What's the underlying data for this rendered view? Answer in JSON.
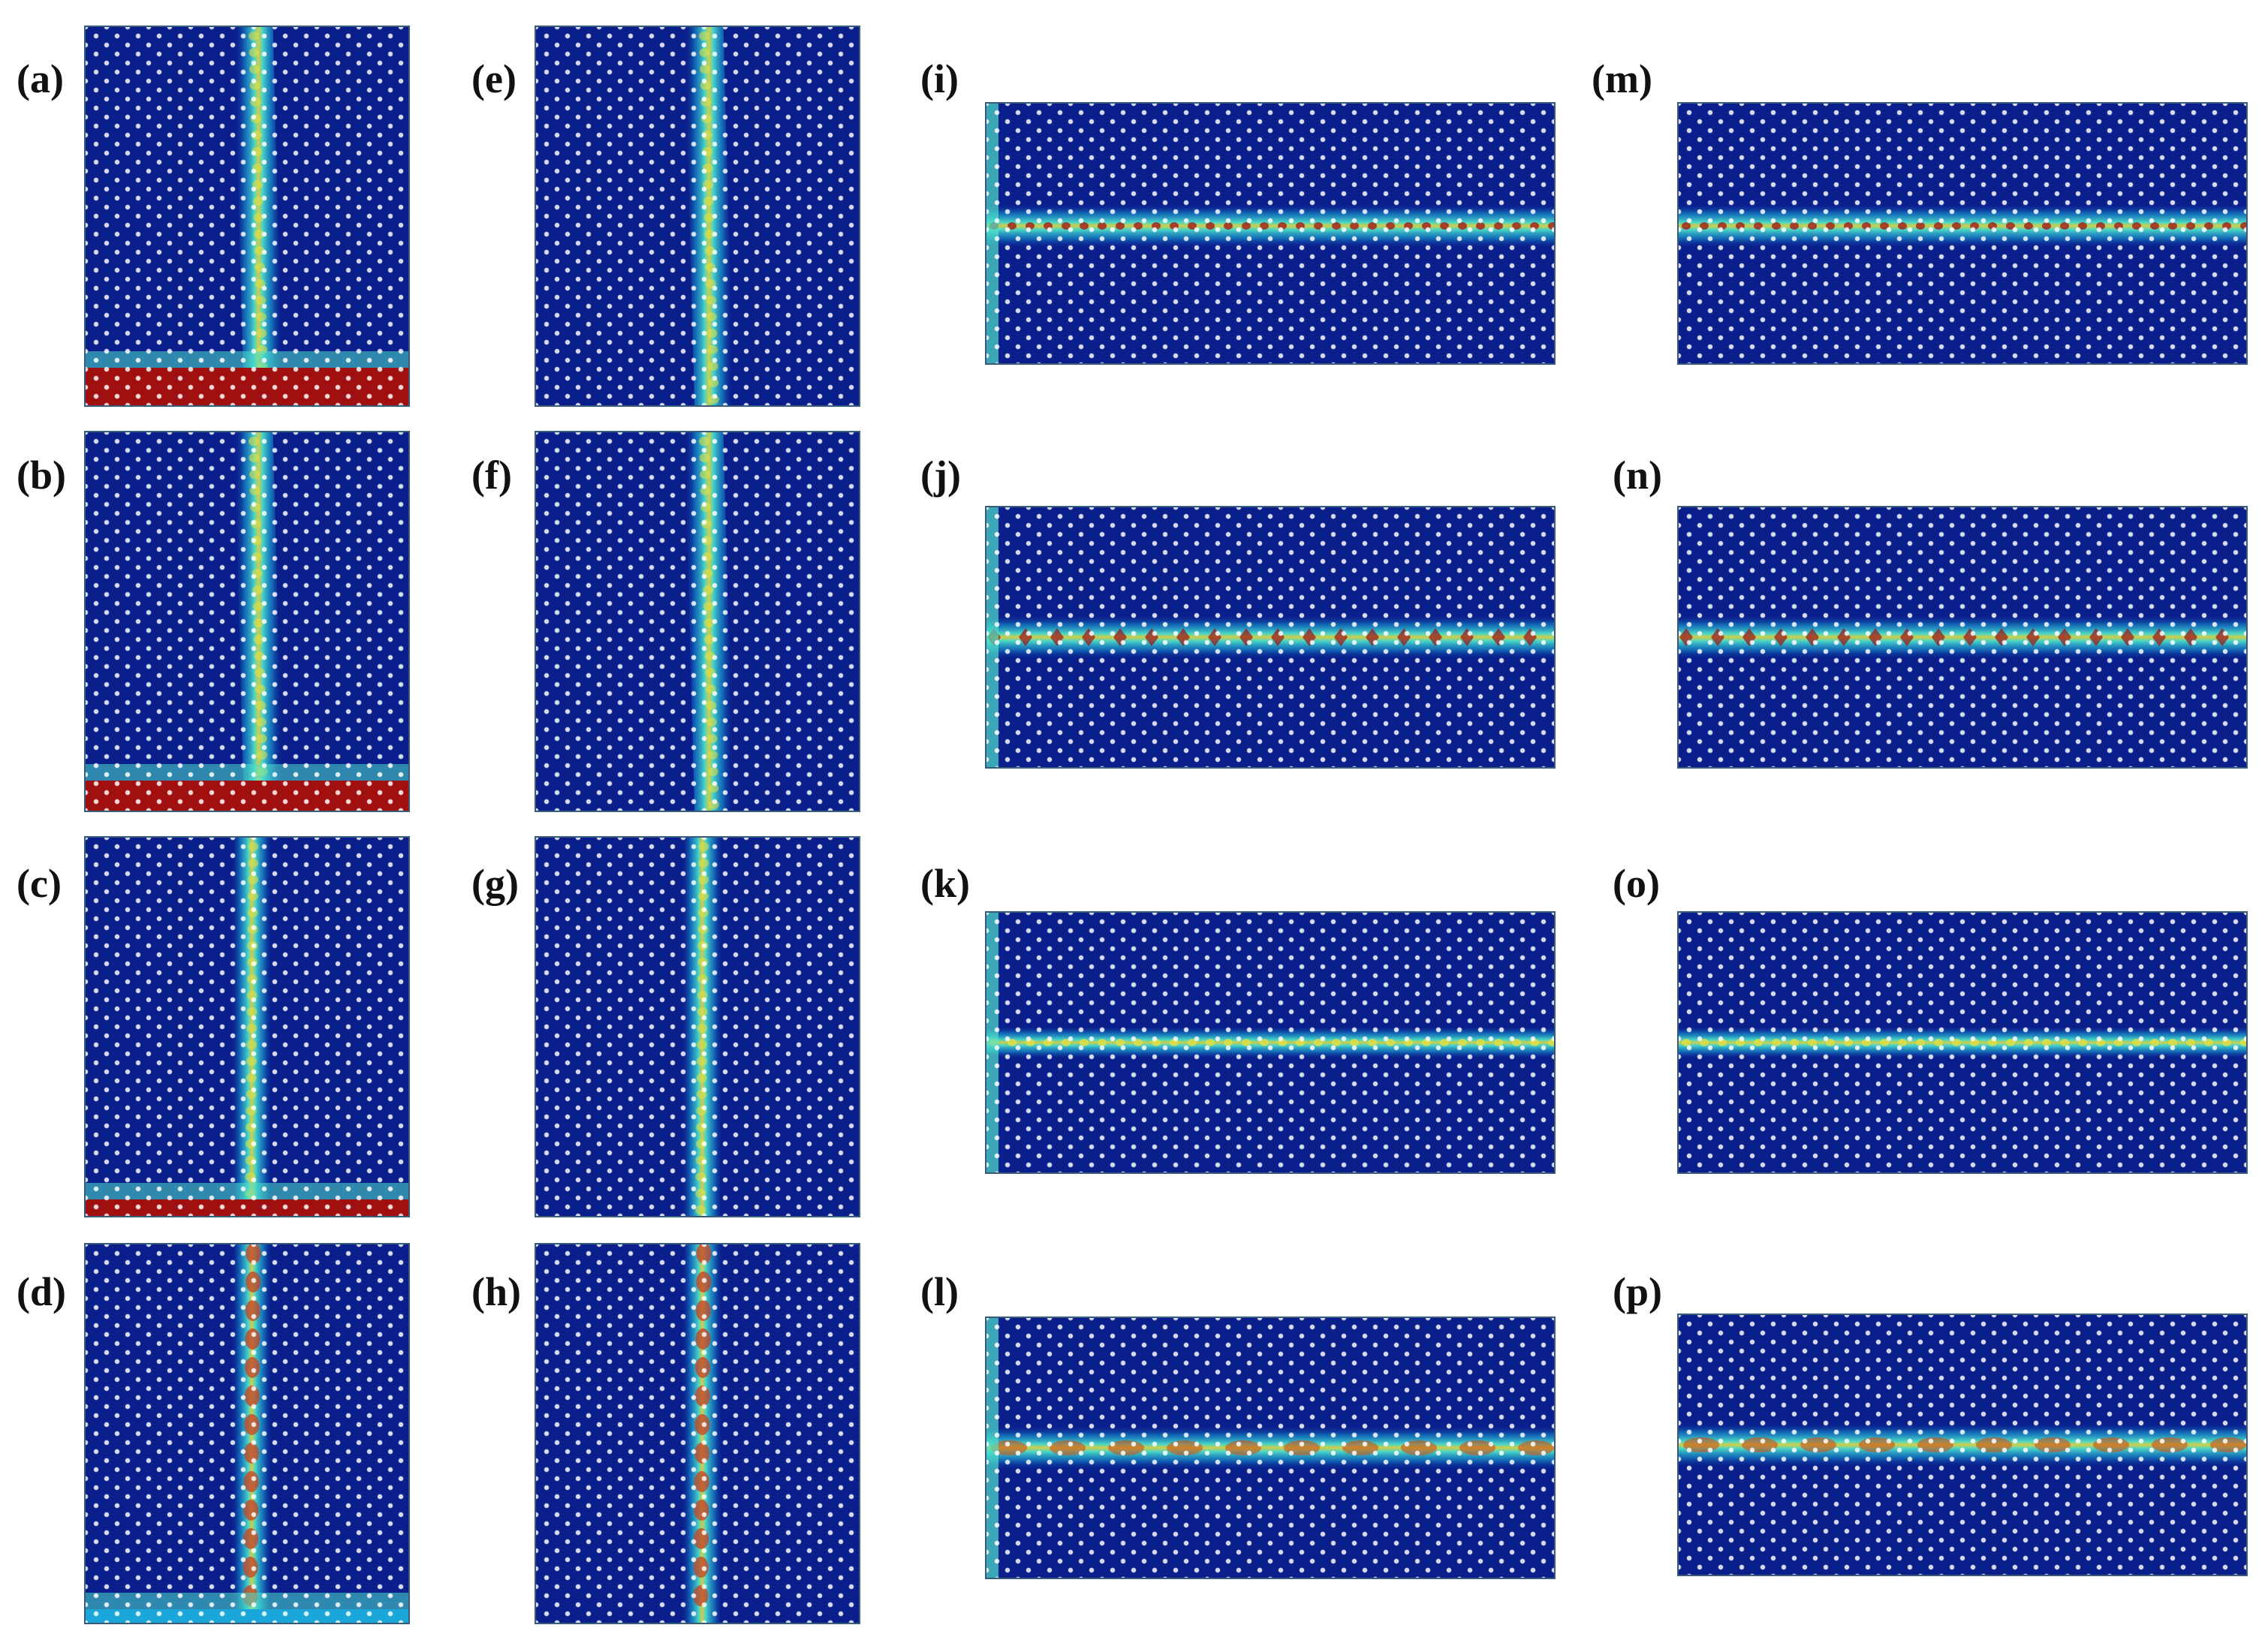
{
  "figure": {
    "colors": {
      "background": "#0a1e8c",
      "mid": "#1aa6d8",
      "cyan": "#4fe0c8",
      "yellow": "#e8e040",
      "red": "#a01010",
      "lattice": "#ffffff"
    },
    "panels": [
      {
        "id": "a",
        "label": "(a)",
        "orientation": "vertical",
        "waveguide": "slanted",
        "bottom_band": "red-thick"
      },
      {
        "id": "b",
        "label": "(b)",
        "orientation": "vertical",
        "waveguide": "slanted",
        "bottom_band": "red-thin"
      },
      {
        "id": "c",
        "label": "(c)",
        "orientation": "vertical",
        "waveguide": "straight",
        "bottom_band": "red-strip"
      },
      {
        "id": "d",
        "label": "(d)",
        "orientation": "vertical",
        "waveguide": "straight-segmented",
        "bottom_band": "cyan"
      },
      {
        "id": "e",
        "label": "(e)",
        "orientation": "vertical",
        "waveguide": "slanted",
        "bottom_band": "none"
      },
      {
        "id": "f",
        "label": "(f)",
        "orientation": "vertical",
        "waveguide": "slanted",
        "bottom_band": "none"
      },
      {
        "id": "g",
        "label": "(g)",
        "orientation": "vertical",
        "waveguide": "straight",
        "bottom_band": "none"
      },
      {
        "id": "h",
        "label": "(h)",
        "orientation": "vertical",
        "waveguide": "straight-segmented",
        "bottom_band": "none"
      },
      {
        "id": "i",
        "label": "(i)",
        "orientation": "horizontal",
        "waveguide": "continuous",
        "source": "left-edge"
      },
      {
        "id": "j",
        "label": "(j)",
        "orientation": "horizontal",
        "waveguide": "diamond-chain",
        "source": "left-edge"
      },
      {
        "id": "k",
        "label": "(k)",
        "orientation": "horizontal",
        "waveguide": "continuous-thin",
        "source": "left-edge"
      },
      {
        "id": "l",
        "label": "(l)",
        "orientation": "horizontal",
        "waveguide": "segmented",
        "source": "left-edge"
      },
      {
        "id": "m",
        "label": "(m)",
        "orientation": "horizontal",
        "waveguide": "continuous",
        "source": "none"
      },
      {
        "id": "n",
        "label": "(n)",
        "orientation": "horizontal",
        "waveguide": "diamond-chain",
        "source": "none"
      },
      {
        "id": "o",
        "label": "(o)",
        "orientation": "horizontal",
        "waveguide": "continuous-thin",
        "source": "none"
      },
      {
        "id": "p",
        "label": "(p)",
        "orientation": "horizontal",
        "waveguide": "segmented",
        "source": "none"
      }
    ]
  }
}
